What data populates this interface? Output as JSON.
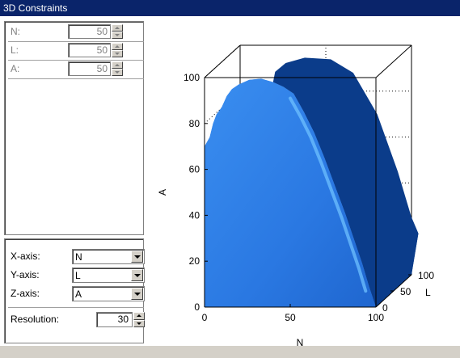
{
  "window": {
    "title": "3D Constraints"
  },
  "params": [
    {
      "label": "N:",
      "value": "50"
    },
    {
      "label": "L:",
      "value": "50"
    },
    {
      "label": "A:",
      "value": "50"
    }
  ],
  "axes": [
    {
      "label": "X-axis:",
      "value": "N"
    },
    {
      "label": "Y-axis:",
      "value": "L"
    },
    {
      "label": "Z-axis:",
      "value": "A"
    }
  ],
  "resolution": {
    "label": "Resolution:",
    "value": "30"
  },
  "chart_data": {
    "type": "surface3d",
    "xlabel": "N",
    "ylabel": "L",
    "zlabel": "A",
    "x_ticks": [
      "0",
      "50",
      "100"
    ],
    "y_ticks": [
      "0",
      "50",
      "100"
    ],
    "z_ticks": [
      "0",
      "20",
      "40",
      "60",
      "80",
      "100"
    ],
    "xlim": [
      0,
      100
    ],
    "ylim": [
      0,
      100
    ],
    "zlim": [
      0,
      100
    ],
    "colors": {
      "front_face": "#2a7fe8",
      "side_face": "#0b3c8a",
      "highlight": "#6ec0ff"
    }
  }
}
